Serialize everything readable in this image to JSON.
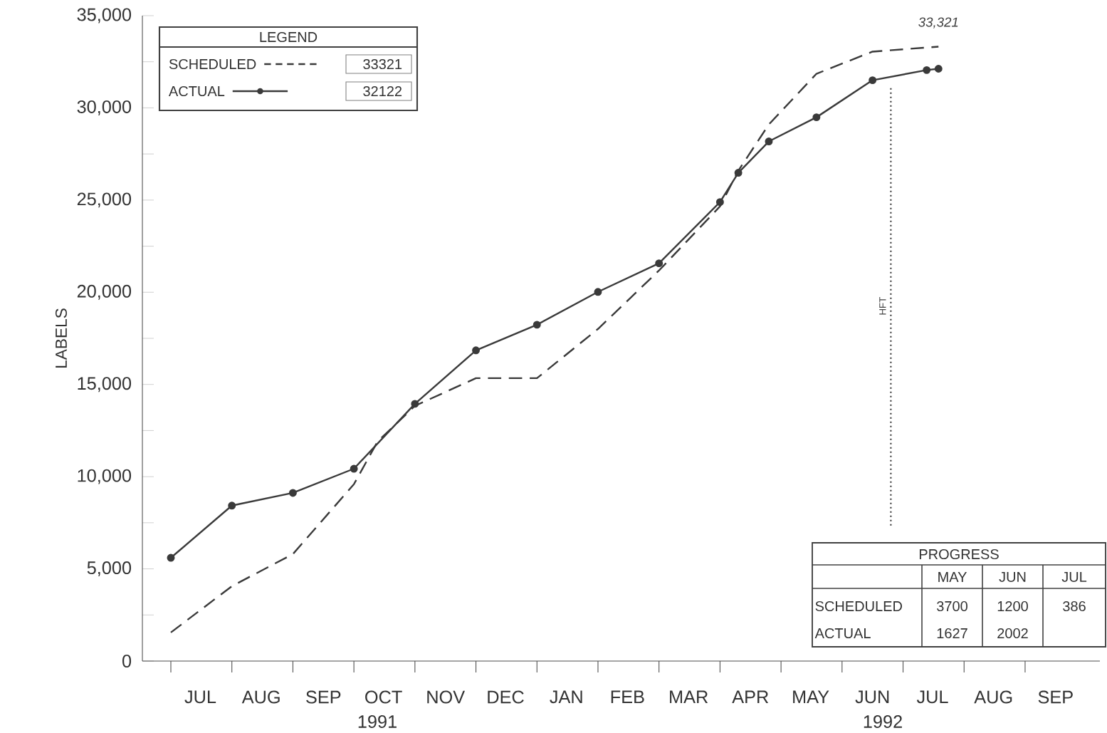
{
  "chart_data": {
    "type": "line",
    "ylabel": "LABELS",
    "legend_title": "LEGEND",
    "legend": "top left",
    "xlim": [
      "1991-06-17",
      "1992-10-08"
    ],
    "xticks": [
      {
        "value": "1991-07-01",
        "label": null
      },
      {
        "value": "1991-07-16",
        "label": "JUL"
      },
      {
        "value": "1991-08-01",
        "label": null
      },
      {
        "value": "1991-08-16",
        "label": "AUG"
      },
      {
        "value": "1991-09-01",
        "label": null
      },
      {
        "value": "1991-09-16",
        "label": "SEP"
      },
      {
        "value": "1991-10-01",
        "label": null
      },
      {
        "value": "1991-10-16",
        "label": "OCT"
      },
      {
        "value": "1991-11-01",
        "label": null
      },
      {
        "value": "1991-11-16",
        "label": "NOV"
      },
      {
        "value": "1991-12-01",
        "label": null
      },
      {
        "value": "1991-12-16",
        "label": "DEC"
      },
      {
        "value": "1992-01-01",
        "label": null
      },
      {
        "value": "1992-01-16",
        "label": "JAN"
      },
      {
        "value": "1992-02-01",
        "label": null
      },
      {
        "value": "1992-02-15",
        "label": "FEB"
      },
      {
        "value": "1992-03-01",
        "label": null
      },
      {
        "value": "1992-03-16",
        "label": "MAR"
      },
      {
        "value": "1992-04-01",
        "label": null
      },
      {
        "value": "1992-04-16",
        "label": "APR"
      },
      {
        "value": "1992-05-01",
        "label": null
      },
      {
        "value": "1992-05-16",
        "label": "MAY"
      },
      {
        "value": "1992-06-01",
        "label": null
      },
      {
        "value": "1992-06-16",
        "label": "JUN"
      },
      {
        "value": "1992-07-01",
        "label": null
      },
      {
        "value": "1992-07-16",
        "label": "JUL"
      },
      {
        "value": "1992-08-01",
        "label": null
      },
      {
        "value": "1992-08-16",
        "label": "AUG"
      },
      {
        "value": "1992-09-01",
        "label": null
      },
      {
        "value": "1992-09-16",
        "label": "SEP"
      }
    ],
    "ylim": [
      0,
      35000
    ],
    "yticks": [
      {
        "value": 0,
        "label": "0"
      },
      {
        "value": 2500,
        "label": null
      },
      {
        "value": 5000,
        "label": "5,000"
      },
      {
        "value": 7500,
        "label": null
      },
      {
        "value": 10000,
        "label": "10,000"
      },
      {
        "value": 12500,
        "label": null
      },
      {
        "value": 15000,
        "label": "15,000"
      },
      {
        "value": 17500,
        "label": null
      },
      {
        "value": 20000,
        "label": "20,000"
      },
      {
        "value": 22500,
        "label": null
      },
      {
        "value": 25000,
        "label": "25,000"
      },
      {
        "value": 27500,
        "label": null
      },
      {
        "value": 30000,
        "label": "30,000"
      },
      {
        "value": 32500,
        "label": null
      },
      {
        "value": 35000,
        "label": "35,000"
      }
    ],
    "series": [
      {
        "name": "SCHEDULED",
        "color": "#3a3a3a",
        "line_style": "dashed",
        "marker": "none",
        "x": [
          "1991-07-01",
          "1991-08-01",
          "1991-09-01",
          "1991-10-01",
          "1991-10-13",
          "1991-11-01",
          "1991-12-01",
          "1992-01-01",
          "1992-02-01",
          "1992-03-01",
          "1992-04-01",
          "1992-04-10",
          "1992-04-25",
          "1992-05-19",
          "1992-06-16",
          "1992-07-19"
        ],
        "values": [
          1550,
          4060,
          5800,
          9590,
          11900,
          13840,
          15340,
          15340,
          18010,
          21180,
          24660,
          26590,
          29100,
          31850,
          33050,
          33321
        ]
      },
      {
        "name": "ACTUAL",
        "color": "#3a3a3a",
        "line_style": "solid",
        "marker": "circle",
        "x": [
          "1991-07-01",
          "1991-08-01",
          "1991-09-01",
          "1991-10-01",
          "1991-11-01",
          "1991-12-01",
          "1992-01-01",
          "1992-02-01",
          "1992-03-01",
          "1992-04-01",
          "1992-04-10",
          "1992-04-25",
          "1992-05-19",
          "1992-06-16",
          "1992-07-13",
          "1992-07-19"
        ],
        "values": [
          5600,
          8430,
          9120,
          10430,
          13950,
          16850,
          18240,
          20020,
          21570,
          24890,
          26480,
          28180,
          29490,
          31500,
          32050,
          32122
        ]
      }
    ],
    "ref_lines": [
      {
        "axis": "x",
        "value": "1992-06-25",
        "label": "HFT",
        "line_style": "dotted",
        "color": "#3a3a3a"
      }
    ],
    "annotations": [
      "1991",
      "1992",
      {
        "text": "33,321",
        "x": "1992-07-19",
        "y": 33321
      },
      "33321",
      "32122",
      "PROGRESS",
      "MAY",
      "JUN",
      "JUL",
      "SCHEDULED",
      "3700",
      "1200",
      "386",
      "ACTUAL",
      "1627",
      "2002"
    ]
  }
}
